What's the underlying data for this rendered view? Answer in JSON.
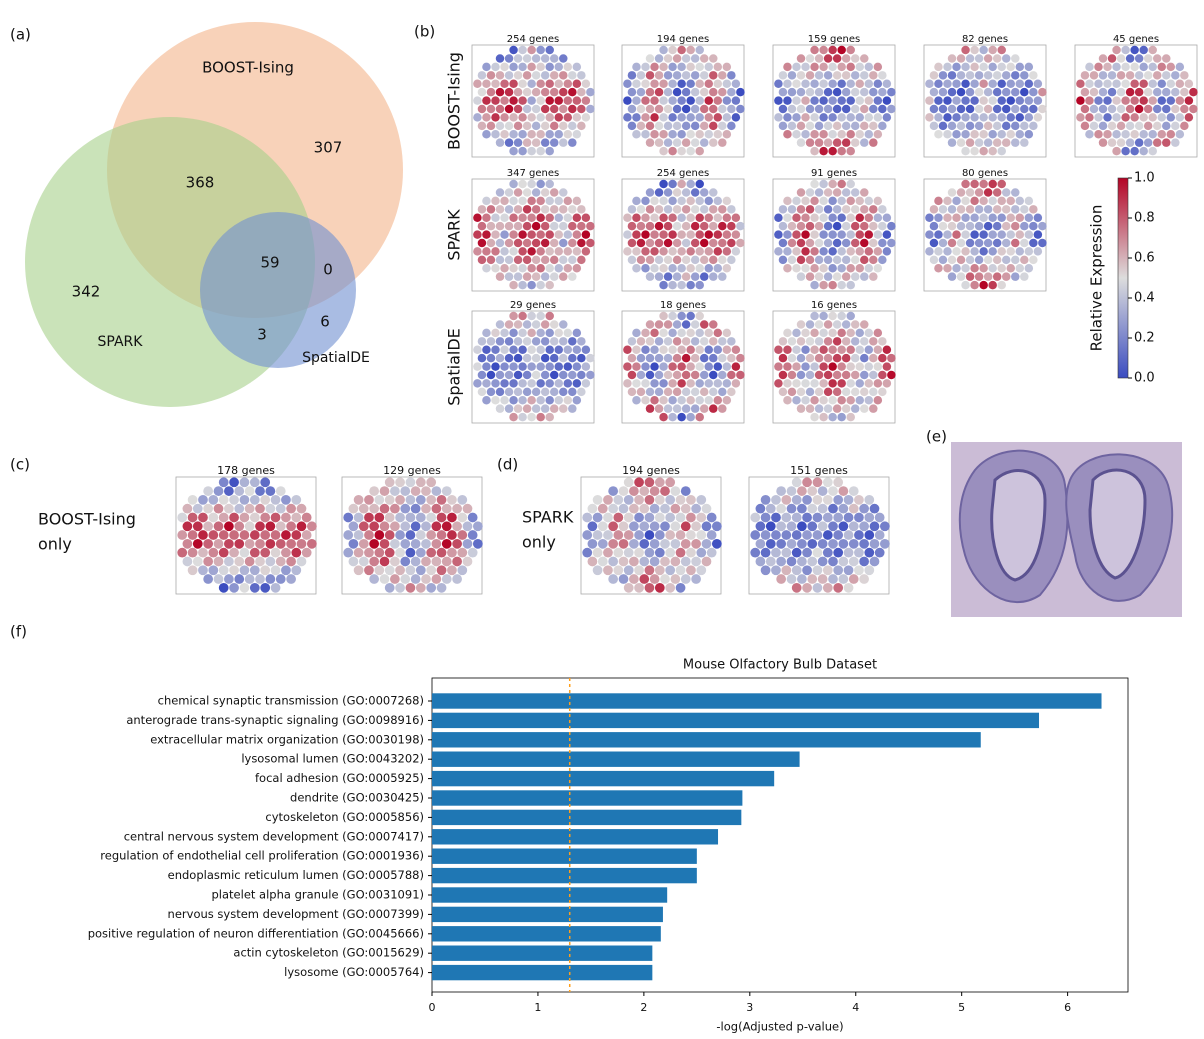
{
  "panel_labels": {
    "a": "(a)",
    "b": "(b)",
    "c": "(c)",
    "d": "(d)",
    "e": "(e)",
    "f": "(f)"
  },
  "venn": {
    "sets": [
      "BOOST-Ising",
      "SPARK",
      "SpatialDE"
    ],
    "regions": {
      "boost_spark": 368,
      "boost_only": 307,
      "all_three": 59,
      "boost_spatialde": 0,
      "spark_only": 342,
      "spark_spatialde": 3,
      "spatialde_only": 6
    }
  },
  "spatial_maps": {
    "rows": [
      {
        "label": "BOOST-Ising",
        "titles": [
          "254 genes",
          "194 genes",
          "159 genes",
          "82 genes",
          "45 genes"
        ]
      },
      {
        "label": "SPARK",
        "titles": [
          "347 genes",
          "254 genes",
          "91 genes",
          "80 genes"
        ]
      },
      {
        "label": "SpatialDE",
        "titles": [
          "29 genes",
          "18 genes",
          "16 genes"
        ]
      }
    ]
  },
  "colorbar": {
    "label": "Relative Expression",
    "ticks": [
      {
        "value": 0,
        "label": "0.0"
      },
      {
        "value": 0.2,
        "label": "0.2"
      },
      {
        "value": 0.4,
        "label": "0.4"
      },
      {
        "value": 0.6,
        "label": "0.6"
      },
      {
        "value": 0.8,
        "label": "0.8"
      },
      {
        "value": 1,
        "label": "1.0"
      }
    ]
  },
  "boost_only": {
    "label": [
      "BOOST-Ising",
      "only"
    ],
    "titles": [
      "178 genes",
      "129 genes"
    ]
  },
  "spark_only": {
    "label": [
      "SPARK",
      "only"
    ],
    "titles": [
      "194 genes",
      "151 genes"
    ]
  },
  "chart_data": {
    "type": "bar",
    "orientation": "horizontal",
    "title": "Mouse Olfactory Bulb Dataset",
    "categories": [
      "chemical synaptic transmission (GO:0007268)",
      "anterograde trans-synaptic signaling (GO:0098916)",
      "extracellular matrix organization (GO:0030198)",
      "lysosomal lumen (GO:0043202)",
      "focal adhesion (GO:0005925)",
      "dendrite (GO:0030425)",
      "cytoskeleton (GO:0005856)",
      "central nervous system development (GO:0007417)",
      "regulation of endothelial cell proliferation (GO:0001936)",
      "endoplasmic reticulum lumen (GO:0005788)",
      "platelet alpha granule (GO:0031091)",
      "nervous system development (GO:0007399)",
      "positive regulation of neuron differentiation (GO:0045666)",
      "actin cytoskeleton (GO:0015629)",
      "lysosome (GO:0005764)"
    ],
    "values": [
      6.32,
      5.73,
      5.18,
      3.47,
      3.23,
      2.93,
      2.92,
      2.7,
      2.5,
      2.5,
      2.22,
      2.18,
      2.16,
      2.08,
      2.08
    ],
    "color": "#1f77b4",
    "xlim": [
      0,
      6.57
    ],
    "xticks": [
      0,
      1,
      2,
      3,
      4,
      5,
      6
    ],
    "xlabel": "-log(Adjusted p-value)",
    "threshold": {
      "value": 1.3,
      "color": "#ff9f1c"
    }
  }
}
